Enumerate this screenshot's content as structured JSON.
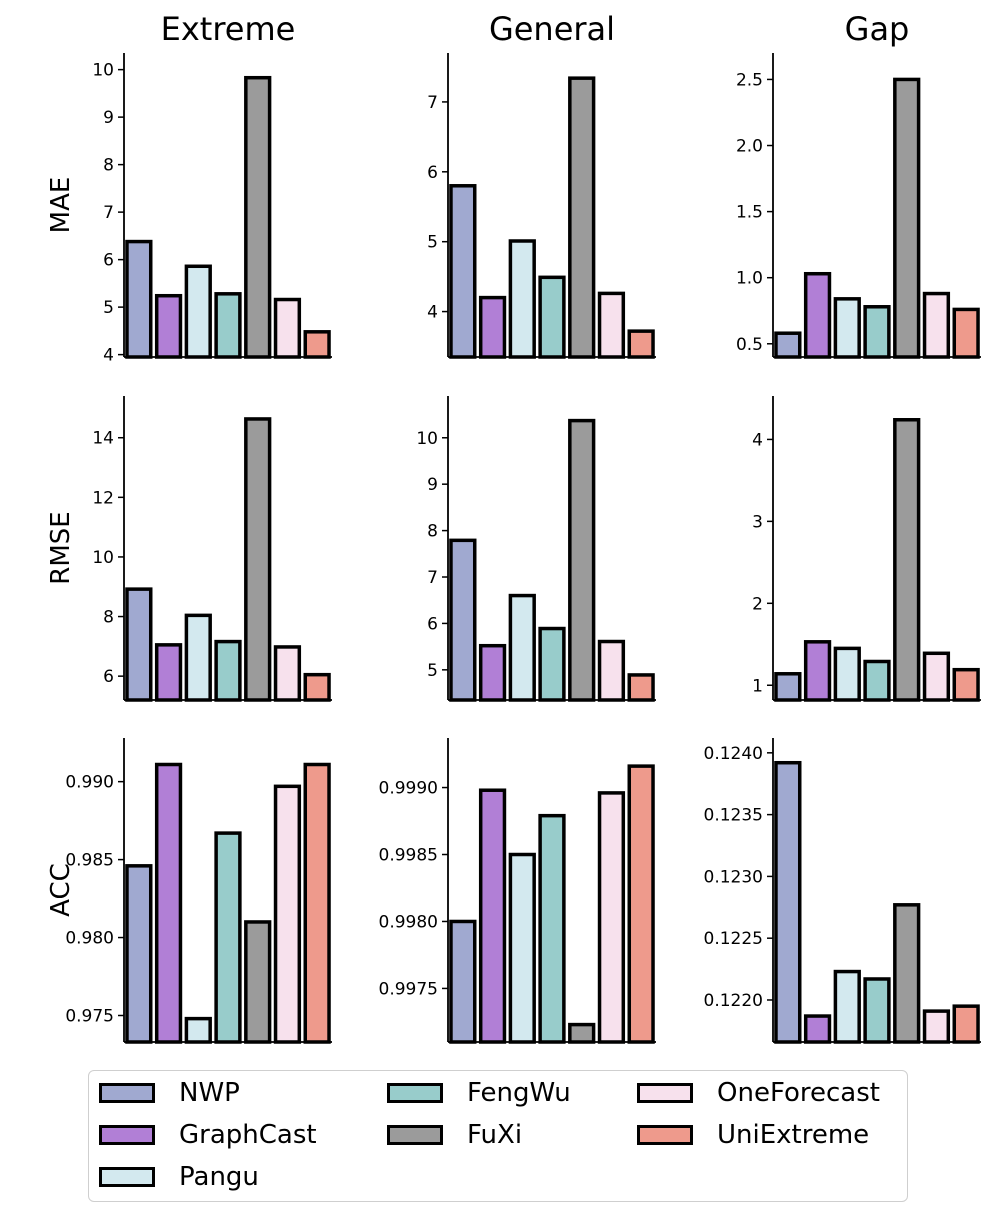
{
  "chart_data": {
    "type": "bar",
    "columns": [
      "Extreme",
      "General",
      "Gap"
    ],
    "rows": [
      "MAE",
      "RMSE",
      "ACC"
    ],
    "models": [
      "NWP",
      "GraphCast",
      "Pangu",
      "FengWu",
      "FuXi",
      "OneForecast",
      "UniExtreme"
    ],
    "colors": {
      "NWP": "#a0a9d0",
      "GraphCast": "#b17fd6",
      "Pangu": "#d3e9ef",
      "FengWu": "#98cccb",
      "FuXi": "#9b9b9b",
      "OneForecast": "#f7e1ed",
      "UniExtreme": "#ee9a8c"
    },
    "panels": [
      {
        "row": "MAE",
        "column": "Extreme",
        "ylim": [
          3.95,
          10.35
        ],
        "ticks": [
          4,
          5,
          6,
          7,
          8,
          9,
          10
        ],
        "tick_labels": [
          "4",
          "5",
          "6",
          "7",
          "8",
          "9",
          "10"
        ],
        "values": [
          6.38,
          5.24,
          5.86,
          5.28,
          9.83,
          5.16,
          4.48
        ]
      },
      {
        "row": "MAE",
        "column": "General",
        "ylim": [
          3.35,
          7.7
        ],
        "ticks": [
          4,
          5,
          6,
          7
        ],
        "tick_labels": [
          "4",
          "5",
          "6",
          "7"
        ],
        "values": [
          5.8,
          4.2,
          5.01,
          4.49,
          7.34,
          4.26,
          3.72
        ]
      },
      {
        "row": "MAE",
        "column": "Gap",
        "ylim": [
          0.4,
          2.7
        ],
        "ticks": [
          0.5,
          1.0,
          1.5,
          2.0,
          2.5
        ],
        "tick_labels": [
          "0.5",
          "1.0",
          "1.5",
          "2.0",
          "2.5"
        ],
        "values": [
          0.58,
          1.03,
          0.84,
          0.78,
          2.5,
          0.88,
          0.76
        ]
      },
      {
        "row": "RMSE",
        "column": "Extreme",
        "ylim": [
          5.2,
          15.4
        ],
        "ticks": [
          6,
          8,
          10,
          12,
          14
        ],
        "tick_labels": [
          "6",
          "8",
          "10",
          "12",
          "14"
        ],
        "values": [
          8.92,
          7.05,
          8.04,
          7.16,
          14.63,
          6.98,
          6.05
        ]
      },
      {
        "row": "RMSE",
        "column": "General",
        "ylim": [
          4.35,
          10.9
        ],
        "ticks": [
          5,
          6,
          7,
          8,
          9,
          10
        ],
        "tick_labels": [
          "5",
          "6",
          "7",
          "8",
          "9",
          "10"
        ],
        "values": [
          7.79,
          5.52,
          6.6,
          5.89,
          10.37,
          5.61,
          4.89
        ]
      },
      {
        "row": "RMSE",
        "column": "Gap",
        "ylim": [
          0.82,
          4.53
        ],
        "ticks": [
          1,
          2,
          3,
          4
        ],
        "tick_labels": [
          "1",
          "2",
          "3",
          "4"
        ],
        "values": [
          1.14,
          1.53,
          1.45,
          1.29,
          4.24,
          1.39,
          1.19
        ]
      },
      {
        "row": "ACC",
        "column": "Extreme",
        "ylim": [
          0.9733,
          0.9928
        ],
        "ticks": [
          0.975,
          0.98,
          0.985,
          0.99
        ],
        "tick_labels": [
          "0.975",
          "0.980",
          "0.985",
          "0.990"
        ],
        "values": [
          0.9846,
          0.9911,
          0.9748,
          0.9867,
          0.981,
          0.9897,
          0.9911
        ]
      },
      {
        "row": "ACC",
        "column": "General",
        "ylim": [
          0.9971,
          0.99937
        ],
        "ticks": [
          0.9975,
          0.998,
          0.9985,
          0.999
        ],
        "tick_labels": [
          "0.9975",
          "0.9980",
          "0.9985",
          "0.9990"
        ],
        "values": [
          0.998,
          0.99898,
          0.9985,
          0.99879,
          0.99723,
          0.99896,
          0.99916
        ]
      },
      {
        "row": "ACC",
        "column": "Gap",
        "ylim": [
          0.12166,
          0.12412
        ],
        "ticks": [
          0.122,
          0.1225,
          0.123,
          0.1235,
          0.124
        ],
        "tick_labels": [
          "0.1220",
          "0.1225",
          "0.1230",
          "0.1235",
          "0.1240"
        ],
        "values": [
          0.12392,
          0.12187,
          0.12223,
          0.12217,
          0.12277,
          0.12191,
          0.12195
        ]
      }
    ]
  }
}
